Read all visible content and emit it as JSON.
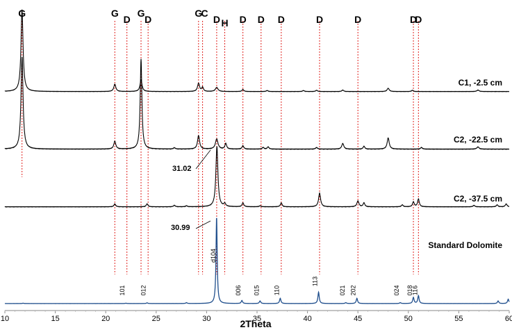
{
  "chart_data": {
    "type": "line",
    "title": "",
    "xlabel": "2Theta",
    "ylabel": "",
    "xlim": [
      10,
      60
    ],
    "xticks": [
      "10",
      "15",
      "20",
      "25",
      "30",
      "35",
      "40",
      "45",
      "50",
      "55",
      "60"
    ],
    "grid": false,
    "legend": "none",
    "reference_lines": [
      {
        "x": 11.7,
        "label": "G"
      },
      {
        "x": 20.9,
        "label": "G"
      },
      {
        "x": 22.1,
        "label": "D"
      },
      {
        "x": 23.5,
        "label": "G"
      },
      {
        "x": 24.2,
        "label": "D"
      },
      {
        "x": 29.2,
        "label": "G"
      },
      {
        "x": 29.6,
        "label": "C"
      },
      {
        "x": 31.0,
        "label": "D"
      },
      {
        "x": 31.8,
        "label": "H"
      },
      {
        "x": 33.6,
        "label": "D"
      },
      {
        "x": 35.4,
        "label": "D"
      },
      {
        "x": 37.4,
        "label": "D"
      },
      {
        "x": 41.2,
        "label": "D"
      },
      {
        "x": 45.0,
        "label": "D"
      },
      {
        "x": 50.5,
        "label": "D"
      },
      {
        "x": 51.0,
        "label": "D"
      }
    ],
    "series": [
      {
        "name": "C1, -2.5 cm",
        "color": "#000000",
        "peaks": [
          {
            "x": 11.7,
            "h": 1.0,
            "w": 0.12
          },
          {
            "x": 20.9,
            "h": 0.09,
            "w": 0.12
          },
          {
            "x": 23.5,
            "h": 0.14,
            "w": 0.12
          },
          {
            "x": 29.2,
            "h": 0.1,
            "w": 0.12
          },
          {
            "x": 29.6,
            "h": 0.05,
            "w": 0.1
          },
          {
            "x": 31.0,
            "h": 0.05,
            "w": 0.15
          },
          {
            "x": 33.6,
            "h": 0.025,
            "w": 0.1
          },
          {
            "x": 36.0,
            "h": 0.012,
            "w": 0.1
          },
          {
            "x": 39.6,
            "h": 0.012,
            "w": 0.1
          },
          {
            "x": 40.9,
            "h": 0.015,
            "w": 0.1
          },
          {
            "x": 43.5,
            "h": 0.018,
            "w": 0.1
          },
          {
            "x": 48.0,
            "h": 0.04,
            "w": 0.12
          },
          {
            "x": 50.4,
            "h": 0.015,
            "w": 0.1
          },
          {
            "x": 56.9,
            "h": 0.018,
            "w": 0.12
          }
        ]
      },
      {
        "name": "C2, -22.5 cm",
        "color": "#000000",
        "peaks": [
          {
            "x": 11.7,
            "h": 0.82,
            "w": 0.12
          },
          {
            "x": 20.9,
            "h": 0.07,
            "w": 0.12
          },
          {
            "x": 23.5,
            "h": 0.8,
            "w": 0.1
          },
          {
            "x": 26.8,
            "h": 0.012,
            "w": 0.1
          },
          {
            "x": 29.2,
            "h": 0.12,
            "w": 0.12
          },
          {
            "x": 31.0,
            "h": 0.09,
            "w": 0.15
          },
          {
            "x": 31.9,
            "h": 0.05,
            "w": 0.1
          },
          {
            "x": 33.6,
            "h": 0.03,
            "w": 0.1
          },
          {
            "x": 35.6,
            "h": 0.015,
            "w": 0.1
          },
          {
            "x": 36.1,
            "h": 0.02,
            "w": 0.1
          },
          {
            "x": 40.9,
            "h": 0.015,
            "w": 0.1
          },
          {
            "x": 43.5,
            "h": 0.05,
            "w": 0.12
          },
          {
            "x": 45.6,
            "h": 0.025,
            "w": 0.1
          },
          {
            "x": 48.0,
            "h": 0.1,
            "w": 0.12
          },
          {
            "x": 51.3,
            "h": 0.015,
            "w": 0.1
          },
          {
            "x": 56.9,
            "h": 0.02,
            "w": 0.12
          }
        ]
      },
      {
        "name": "C2, -37.5 cm",
        "color": "#000000",
        "annotation": "31.02",
        "annotation_x": 31.02,
        "peaks": [
          {
            "x": 20.9,
            "h": 0.03,
            "w": 0.1
          },
          {
            "x": 24.1,
            "h": 0.03,
            "w": 0.1
          },
          {
            "x": 26.8,
            "h": 0.015,
            "w": 0.1
          },
          {
            "x": 28.0,
            "h": 0.01,
            "w": 0.1
          },
          {
            "x": 31.02,
            "h": 0.62,
            "w": 0.12
          },
          {
            "x": 31.8,
            "h": 0.03,
            "w": 0.1
          },
          {
            "x": 33.6,
            "h": 0.04,
            "w": 0.1
          },
          {
            "x": 35.3,
            "h": 0.01,
            "w": 0.1
          },
          {
            "x": 37.4,
            "h": 0.04,
            "w": 0.1
          },
          {
            "x": 41.2,
            "h": 0.14,
            "w": 0.12
          },
          {
            "x": 45.0,
            "h": 0.06,
            "w": 0.12
          },
          {
            "x": 45.6,
            "h": 0.04,
            "w": 0.1
          },
          {
            "x": 49.4,
            "h": 0.02,
            "w": 0.1
          },
          {
            "x": 50.5,
            "h": 0.05,
            "w": 0.1
          },
          {
            "x": 51.0,
            "h": 0.08,
            "w": 0.1
          },
          {
            "x": 56.5,
            "h": 0.015,
            "w": 0.1
          },
          {
            "x": 58.8,
            "h": 0.02,
            "w": 0.1
          },
          {
            "x": 59.7,
            "h": 0.03,
            "w": 0.1
          }
        ]
      },
      {
        "name": "Standard  Dolomite",
        "color": "#1f4e8c",
        "annotation": "30.99",
        "annotation_x": 30.99,
        "peaks": [
          {
            "x": 11.8,
            "h": 0.004,
            "w": 0.08
          },
          {
            "x": 22.0,
            "h": 0.004,
            "w": 0.08
          },
          {
            "x": 24.1,
            "h": 0.008,
            "w": 0.08
          },
          {
            "x": 28.0,
            "h": 0.01,
            "w": 0.08
          },
          {
            "x": 30.99,
            "h": 1.0,
            "w": 0.07
          },
          {
            "x": 33.5,
            "h": 0.035,
            "w": 0.08
          },
          {
            "x": 35.3,
            "h": 0.03,
            "w": 0.08
          },
          {
            "x": 37.3,
            "h": 0.06,
            "w": 0.08
          },
          {
            "x": 41.1,
            "h": 0.13,
            "w": 0.08
          },
          {
            "x": 43.8,
            "h": 0.01,
            "w": 0.08
          },
          {
            "x": 44.9,
            "h": 0.06,
            "w": 0.08
          },
          {
            "x": 49.2,
            "h": 0.01,
            "w": 0.08
          },
          {
            "x": 50.5,
            "h": 0.07,
            "w": 0.08
          },
          {
            "x": 51.0,
            "h": 0.09,
            "w": 0.08
          },
          {
            "x": 58.9,
            "h": 0.03,
            "w": 0.08
          },
          {
            "x": 59.9,
            "h": 0.05,
            "w": 0.08
          }
        ]
      }
    ],
    "hkl_labels": [
      {
        "x": 22.0,
        "label": "101"
      },
      {
        "x": 24.1,
        "label": "012"
      },
      {
        "x": 30.99,
        "label": "d104"
      },
      {
        "x": 33.5,
        "label": "006"
      },
      {
        "x": 35.3,
        "label": "015"
      },
      {
        "x": 37.3,
        "label": "110"
      },
      {
        "x": 41.1,
        "label": "113"
      },
      {
        "x": 43.8,
        "label": "021"
      },
      {
        "x": 44.9,
        "label": "202"
      },
      {
        "x": 49.2,
        "label": "024"
      },
      {
        "x": 50.5,
        "label": "018"
      },
      {
        "x": 51.0,
        "label": "116"
      }
    ]
  }
}
